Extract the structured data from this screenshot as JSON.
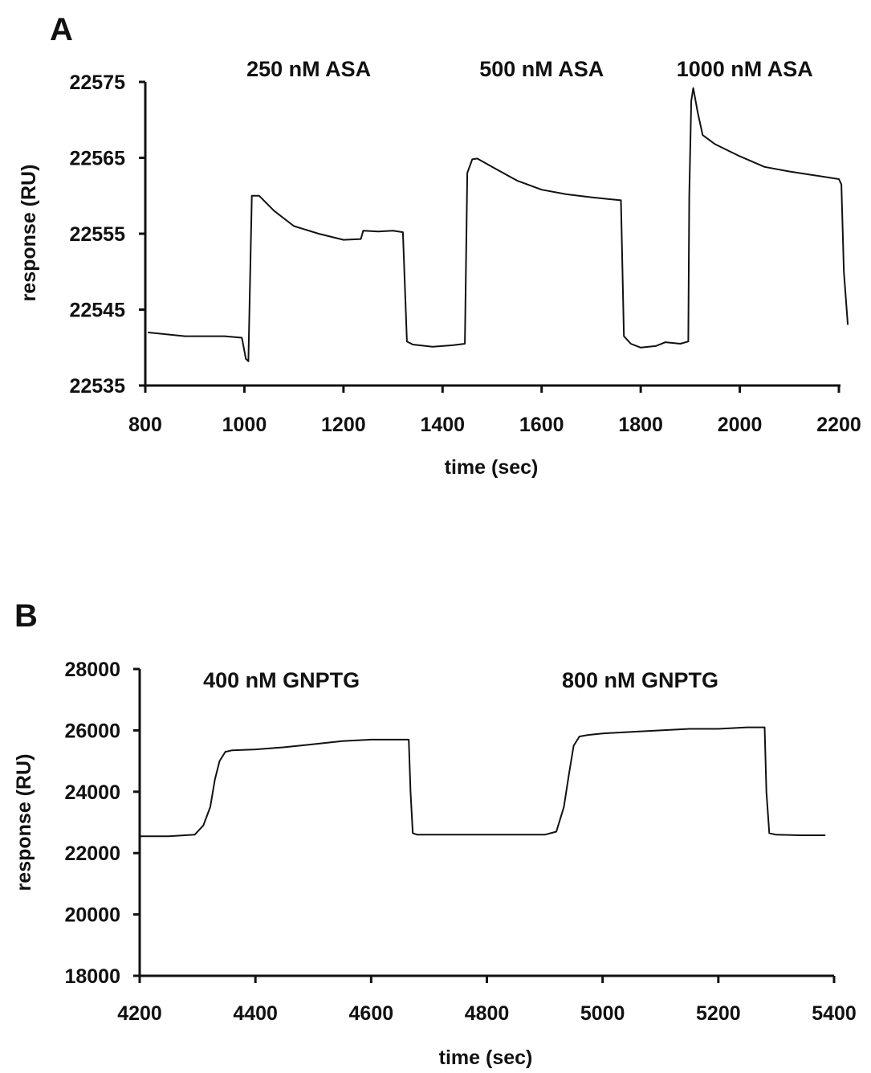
{
  "chart_data": [
    {
      "panel": "A",
      "type": "line",
      "xlabel": "time (sec)",
      "ylabel": "response (RU)",
      "xlim": [
        800,
        2200
      ],
      "ylim": [
        22535,
        22575
      ],
      "xticks": [
        800,
        1000,
        1200,
        1400,
        1600,
        1800,
        2000,
        2200
      ],
      "yticks": [
        22535,
        22545,
        22555,
        22565,
        22575
      ],
      "annotations": [
        {
          "text": "250 nM ASA",
          "x": 1130
        },
        {
          "text": "500 nM ASA",
          "x": 1600
        },
        {
          "text": "1000 nM ASA",
          "x": 2010
        }
      ],
      "series": [
        {
          "x": [
            805,
            880,
            960,
            995,
            1003,
            1008,
            1015,
            1030,
            1060,
            1100,
            1150,
            1200,
            1235,
            1240,
            1270,
            1300,
            1320,
            1328,
            1340,
            1380,
            1420,
            1445,
            1450,
            1460,
            1470,
            1500,
            1550,
            1600,
            1650,
            1700,
            1760,
            1766,
            1780,
            1800,
            1830,
            1850,
            1880,
            1896,
            1898,
            1902,
            1906,
            1915,
            1925,
            1950,
            2000,
            2050,
            2100,
            2150,
            2200,
            2205,
            2210,
            2218
          ],
          "y": [
            22542,
            22541.5,
            22541.5,
            22541.3,
            22538.5,
            22538.2,
            22560,
            22560,
            22558,
            22556,
            22555,
            22554.2,
            22554.3,
            22555.4,
            22555.3,
            22555.4,
            22555.2,
            22540.8,
            22540.4,
            22540.1,
            22540.3,
            22540.5,
            22563,
            22564.8,
            22564.9,
            22563.8,
            22562,
            22560.8,
            22560.2,
            22559.8,
            22559.4,
            22541.5,
            22540.5,
            22540.0,
            22540.2,
            22540.7,
            22540.5,
            22540.8,
            22560,
            22572.5,
            22574.2,
            22571,
            22568,
            22566.8,
            22565.2,
            22563.8,
            22563.2,
            22562.7,
            22562.2,
            22561.5,
            22550,
            22543
          ]
        }
      ]
    },
    {
      "panel": "B",
      "type": "line",
      "xlabel": "time (sec)",
      "ylabel": "response (RU)",
      "xlim": [
        4200,
        5400
      ],
      "ylim": [
        18000,
        28000
      ],
      "xticks": [
        4200,
        4400,
        4600,
        4800,
        5000,
        5200,
        5400
      ],
      "yticks": [
        18000,
        20000,
        22000,
        24000,
        26000,
        28000
      ],
      "annotations": [
        {
          "text": "400 nM GNPTG",
          "x": 4445
        },
        {
          "text": "800 nM GNPTG",
          "x": 5065
        }
      ],
      "series": [
        {
          "x": [
            4200,
            4250,
            4295,
            4310,
            4322,
            4330,
            4338,
            4348,
            4360,
            4400,
            4450,
            4500,
            4550,
            4600,
            4665,
            4668,
            4672,
            4680,
            4700,
            4750,
            4800,
            4850,
            4900,
            4920,
            4933,
            4942,
            4950,
            4960,
            4975,
            5000,
            5050,
            5100,
            5150,
            5200,
            5250,
            5280,
            5283,
            5288,
            5300,
            5340,
            5385
          ],
          "y": [
            22550,
            22550,
            22600,
            22900,
            23500,
            24400,
            25000,
            25300,
            25350,
            25380,
            25450,
            25550,
            25650,
            25700,
            25700,
            24000,
            22650,
            22600,
            22600,
            22600,
            22600,
            22600,
            22600,
            22700,
            23500,
            24600,
            25500,
            25800,
            25850,
            25900,
            25950,
            26000,
            26050,
            26050,
            26100,
            26100,
            24000,
            22650,
            22600,
            22580,
            22580
          ]
        }
      ]
    }
  ]
}
